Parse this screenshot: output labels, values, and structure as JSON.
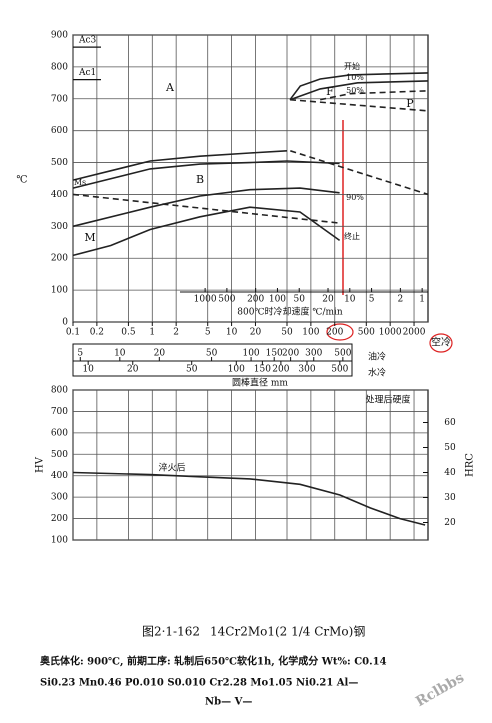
{
  "chart_data": [
    {
      "type": "line",
      "ylabel": "℃",
      "xscale": "log",
      "xlim": [
        0.1,
        3000
      ],
      "xticks": [
        0.1,
        0.2,
        0.5,
        1,
        2,
        5,
        10,
        20,
        50,
        100,
        200,
        500,
        1000,
        2000
      ],
      "ylim": [
        0,
        900
      ],
      "yticks": [
        0,
        100,
        200,
        300,
        400,
        500,
        600,
        700,
        800,
        900
      ],
      "grid": true,
      "critical_lines": [
        {
          "name": "Ac3",
          "value": 862
        },
        {
          "name": "Ac1",
          "value": 760
        }
      ],
      "region_labels": [
        "A",
        "F",
        "P",
        "B",
        "M",
        "Ms",
        "开始",
        "10%",
        "50%",
        "90%",
        "终止"
      ],
      "series": [
        {
          "color": "#222222",
          "x": [
            54.6,
            73.5,
            131,
            310,
            3000
          ],
          "values": [
            697,
            740,
            762,
            775,
            781
          ]
        },
        {
          "color": "#222222",
          "x": [
            54.6,
            131,
            390,
            3000
          ],
          "values": [
            697,
            731,
            750,
            756
          ]
        },
        {
          "color": "#222222",
          "dashed": true,
          "x": [
            131,
            310,
            3000
          ],
          "values": [
            697,
            716,
            725
          ]
        },
        {
          "color": "#222222",
          "dashed": true,
          "x": [
            54.6,
            3000
          ],
          "values": [
            697,
            662
          ]
        },
        {
          "color": "#222222",
          "x": [
            0.1,
            0.94,
            4,
            17,
            50
          ],
          "values": [
            445,
            505,
            520,
            530,
            537
          ]
        },
        {
          "color": "#222222",
          "dashed": true,
          "x": [
            55,
            3000
          ],
          "values": [
            537,
            400
          ]
        },
        {
          "color": "#222222",
          "x": [
            0.1,
            0.94,
            4,
            17,
            50,
            230
          ],
          "values": [
            420,
            480,
            495,
            500,
            505,
            497
          ]
        },
        {
          "color": "#222222",
          "dashed": true,
          "x": [
            0.1,
            230
          ],
          "values": [
            400,
            310
          ]
        },
        {
          "color": "#222222",
          "x": [
            0.1,
            0.94,
            4,
            17,
            73,
            230
          ],
          "values": [
            300,
            360,
            395,
            415,
            420,
            405
          ]
        },
        {
          "color": "#222222",
          "x": [
            0.1,
            0.3,
            0.94,
            4,
            17,
            73,
            230
          ],
          "values": [
            209,
            240,
            290,
            330,
            360,
            345,
            256
          ]
        }
      ],
      "rate_axis": {
        "label": "800℃时冷却速度  ℃/min",
        "lim": [
          67000,
          0.83
        ],
        "ticks": [
          1000,
          500,
          200,
          100,
          50,
          20,
          10,
          5,
          2,
          1
        ]
      },
      "diameter_axis": {
        "label": "圆棒直径  mm",
        "oil": {
          "name": "油冷",
          "lim": [
            4.4,
            587
          ],
          "ticks": [
            5,
            10,
            20,
            50,
            100,
            150,
            200,
            300,
            500
          ]
        },
        "water": {
          "name": "水冷",
          "lim": [
            7.9,
            604
          ],
          "ticks": [
            10,
            20,
            50,
            100,
            150,
            200,
            300,
            500
          ]
        }
      },
      "air_cool": "空冷"
    },
    {
      "type": "line",
      "ylabel": "HV",
      "y2label": "HRC",
      "xscale": "log",
      "xlim": [
        0.1,
        3000
      ],
      "ylim": [
        100,
        800
      ],
      "yticks": [
        100,
        200,
        300,
        400,
        500,
        600,
        700,
        800
      ],
      "y2lim": [
        13,
        73
      ],
      "y2ticks": [
        60,
        50,
        40,
        30,
        20
      ],
      "grid": true,
      "note": "处理后硬度",
      "annotation": "淬火后",
      "series": [
        {
          "color": "#222222",
          "x": [
            0.1,
            0.94,
            4,
            17,
            73,
            232,
            560,
            1330,
            2760
          ],
          "values": [
            415,
            405,
            395,
            385,
            360,
            310,
            250,
            200,
            170
          ]
        }
      ]
    }
  ],
  "caption": {
    "figure": "图2·1-162",
    "steel": "14Cr2Mo1(2 1/4 CrMo)钢"
  },
  "conditions": [
    "奥氏体化: 900℃, 前期工序: 轧制后650℃软化1h, 化学成分 Wt%: C0.14",
    "Si0.23  Mn0.46  P0.010  S0.010  Cr2.28  Mo1.05  Ni0.21  Al—",
    "Nb—  V—"
  ],
  "watermark": "Rclbbs"
}
